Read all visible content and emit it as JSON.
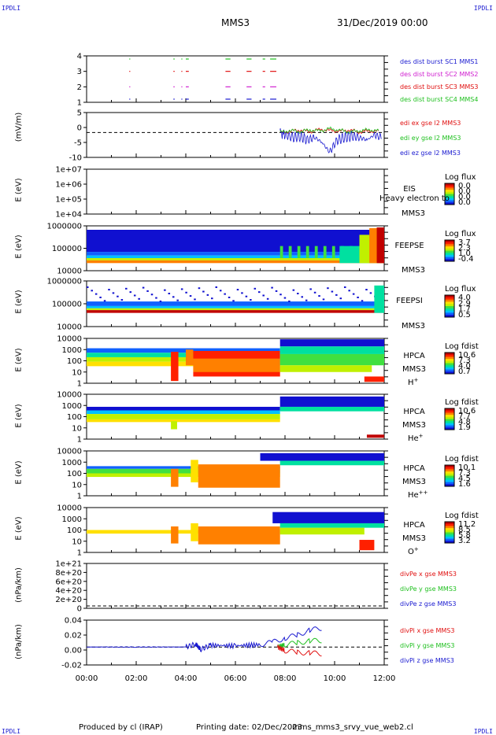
{
  "corners": {
    "tl": "IPDLI",
    "tr": "IPDLI",
    "bl": "IPDLI",
    "br": "IPDLI"
  },
  "header": {
    "spacecraft": "MMS3",
    "date": "31/Dec/2019 00:00"
  },
  "footer": {
    "produced": "Produced by cl (IRAP)",
    "printing": "Printing date: 02/Dec/2023",
    "file": "mms_mms3_srvy_vue_web2.cl"
  },
  "colors": {
    "blue": "#1a1ad0",
    "magenta": "#d020d0",
    "red": "#e01010",
    "green": "#20c020",
    "rainbow": [
      "#ffffff",
      "#1010d0",
      "#1060ff",
      "#00c0ff",
      "#00e0a0",
      "#40e040",
      "#c0f000",
      "#ffe000",
      "#ff8000",
      "#ff2000",
      "#c00000"
    ]
  },
  "chart_data": [
    {
      "type": "scatter",
      "id": "p1",
      "ylabel": "",
      "yticks": [
        "4",
        "3",
        "2",
        "1"
      ],
      "legend": [
        {
          "text": "des dist burst SC1 MMS1",
          "color": "#1a1ad0"
        },
        {
          "text": "des dist burst SC2 MMS2",
          "color": "#d020d0"
        },
        {
          "text": "des dist burst SC3 MMS3",
          "color": "#e01010"
        },
        {
          "text": "des dist burst SC4 MMS4",
          "color": "#20c020"
        }
      ],
      "series": [
        {
          "name": "des dist burst SC4 MMS4",
          "y": 4,
          "x": [
            [
              1.72,
              1.76
            ],
            [
              3.5,
              3.55
            ],
            [
              3.82,
              3.86
            ],
            [
              4.0,
              4.12
            ],
            [
              5.6,
              5.8
            ],
            [
              6.45,
              6.65
            ],
            [
              7.1,
              7.2
            ],
            [
              7.4,
              7.65
            ]
          ]
        },
        {
          "name": "des dist burst SC3 MMS3",
          "y": 3,
          "x": [
            [
              1.72,
              1.76
            ],
            [
              3.5,
              3.55
            ],
            [
              3.82,
              3.86
            ],
            [
              4.0,
              4.12
            ],
            [
              5.6,
              5.8
            ],
            [
              6.45,
              6.65
            ],
            [
              7.1,
              7.2
            ],
            [
              7.4,
              7.65
            ]
          ]
        },
        {
          "name": "des dist burst SC2 MMS2",
          "y": 2,
          "x": [
            [
              1.72,
              1.76
            ],
            [
              3.5,
              3.55
            ],
            [
              3.82,
              3.86
            ],
            [
              4.0,
              4.12
            ],
            [
              5.6,
              5.8
            ],
            [
              6.45,
              6.65
            ],
            [
              7.1,
              7.2
            ],
            [
              7.4,
              7.65
            ]
          ]
        },
        {
          "name": "des dist burst SC1 MMS1",
          "y": 1,
          "x": [
            [
              1.72,
              1.76
            ],
            [
              3.5,
              3.55
            ],
            [
              3.82,
              3.86
            ],
            [
              4.0,
              4.12
            ],
            [
              5.6,
              5.8
            ],
            [
              6.45,
              6.65
            ],
            [
              7.1,
              7.2
            ],
            [
              7.4,
              7.65
            ]
          ]
        }
      ]
    },
    {
      "type": "line",
      "id": "p2",
      "ylabel": "(mV/m)",
      "yticks": [
        "5",
        "0",
        "-5",
        "-10"
      ],
      "ylim": [
        -10,
        8
      ],
      "legend": [
        {
          "text": "edi ex gse l2 MMS3",
          "color": "#e01010"
        },
        {
          "text": "edi ey gse l2 MMS3",
          "color": "#20c020"
        },
        {
          "text": "edi ez gse l2 MMS3",
          "color": "#1a1ad0"
        }
      ],
      "series": [
        {
          "name": "edi ez gse l2 MMS3",
          "x": [
            7.8,
            8.0,
            8.3,
            8.6,
            8.9,
            9.2,
            9.5,
            9.8,
            10.1,
            10.4,
            10.7,
            11.0,
            11.3,
            11.6,
            11.9
          ],
          "y": [
            0,
            -1,
            -2,
            -1.5,
            -3,
            -2,
            -4,
            -8,
            -3,
            -2,
            -1.5,
            -2,
            -3,
            -1,
            -2
          ]
        },
        {
          "name": "edi ex gse l2 MMS3",
          "x": [
            7.8,
            8.2,
            8.6,
            9.0,
            9.4,
            9.8,
            10.2,
            10.6,
            11.0,
            11.4,
            11.8
          ],
          "y": [
            0,
            0.5,
            1,
            0.3,
            1.2,
            0.8,
            0.5,
            1,
            0.2,
            0.6,
            0.4
          ]
        },
        {
          "name": "edi ey gse l2 MMS3",
          "x": [
            7.8,
            8.2,
            8.6,
            9.0,
            9.4,
            9.8,
            10.2,
            10.6,
            11.0,
            11.4,
            11.8
          ],
          "y": [
            0,
            0.8,
            0.4,
            1,
            0.6,
            1.5,
            0.9,
            0.3,
            0.7,
            1.1,
            0.5
          ]
        }
      ]
    },
    {
      "type": "heatmap",
      "id": "p3",
      "ylabel": "E (eV)",
      "yticks": [
        "1e+07",
        "1e+06",
        "1e+05",
        "1e+04"
      ],
      "labels": [
        "EIS",
        "MMS3"
      ],
      "overlay": "Heavy electron to",
      "cbtitle": "Log flux",
      "cbvals": [
        "0.0",
        "0.0",
        "0.0",
        "0.0"
      ]
    },
    {
      "type": "heatmap",
      "id": "p4",
      "ylabel": "E (eV)",
      "yticks": [
        "1000000",
        "100000",
        "10000"
      ],
      "labels": [
        "FEEPSE",
        "MMS3"
      ],
      "cbtitle": "Log flux",
      "cbvals": [
        "3.7",
        "2.3",
        "1.0",
        "-0.4"
      ]
    },
    {
      "type": "heatmap",
      "id": "p5",
      "ylabel": "E (eV)",
      "yticks": [
        "1000000",
        "100000",
        "10000"
      ],
      "labels": [
        "FEEPSI",
        "MMS3"
      ],
      "cbtitle": "Log flux",
      "cbvals": [
        "4.0",
        "2.9",
        "1.7",
        "0.5"
      ]
    },
    {
      "type": "heatmap",
      "id": "p6",
      "ylabel": "E (eV)",
      "yticks": [
        "10000",
        "1000",
        "100",
        "10",
        "1"
      ],
      "labels": [
        "HPCA",
        "MMS3",
        "H+"
      ],
      "cbtitle": "Log fdist",
      "cbvals": [
        "10.6",
        "7.3",
        "4.0",
        "0.7"
      ]
    },
    {
      "type": "heatmap",
      "id": "p7",
      "ylabel": "E (eV)",
      "yticks": [
        "10000",
        "1000",
        "100",
        "10",
        "1"
      ],
      "labels": [
        "HPCA",
        "MMS3",
        "He+"
      ],
      "cbtitle": "Log fdist",
      "cbvals": [
        "10.6",
        "7.7",
        "4.8",
        "1.9"
      ]
    },
    {
      "type": "heatmap",
      "id": "p8",
      "ylabel": "E (eV)",
      "yticks": [
        "10000",
        "1000",
        "100",
        "10",
        "1"
      ],
      "labels": [
        "HPCA",
        "MMS3",
        "He++"
      ],
      "cbtitle": "Log fdist",
      "cbvals": [
        "10.1",
        "7.3",
        "4.5",
        "1.6"
      ]
    },
    {
      "type": "heatmap",
      "id": "p9",
      "ylabel": "E (eV)",
      "yticks": [
        "10000",
        "1000",
        "100",
        "10",
        "1"
      ],
      "labels": [
        "HPCA",
        "MMS3",
        "O+"
      ],
      "cbtitle": "Log fdist",
      "cbvals": [
        "11.2",
        "8.5",
        "5.8",
        "3.2"
      ]
    },
    {
      "type": "line",
      "id": "p10",
      "ylabel": "(nPa/km)",
      "yticks": [
        "1e+21",
        "8e+20",
        "6e+20",
        "4e+20",
        "2e+20",
        "0"
      ],
      "legend": [
        {
          "text": "divPe x gse MMS3",
          "color": "#e01010"
        },
        {
          "text": "divPe y gse MMS3",
          "color": "#20c020"
        },
        {
          "text": "divPe z gse MMS3",
          "color": "#1a1ad0"
        }
      ],
      "series": []
    },
    {
      "type": "line",
      "id": "p11",
      "ylabel": "(nPa/km)",
      "yticks": [
        "0.04",
        "0.02",
        "0.00",
        "-0.02"
      ],
      "ylim": [
        -0.03,
        0.045
      ],
      "legend": [
        {
          "text": "divPi x gse MMS3",
          "color": "#e01010"
        },
        {
          "text": "divPi y gse MMS3",
          "color": "#20c020"
        },
        {
          "text": "divPi z gse MMS3",
          "color": "#1a1ad0"
        }
      ],
      "series": [
        {
          "name": "divPi z gse MMS3",
          "x": [
            0,
            2,
            4,
            4.4,
            4.6,
            5,
            6,
            7,
            7.5,
            8,
            8.5,
            9,
            9.5
          ],
          "y": [
            0,
            0,
            0,
            0.005,
            -0.004,
            0.003,
            0.002,
            0.004,
            0.008,
            0.015,
            0.02,
            0.028,
            0.032
          ]
        },
        {
          "name": "divPi y gse MMS3",
          "x": [
            7.7,
            8,
            8.5,
            9,
            9.5
          ],
          "y": [
            0,
            0.004,
            0.007,
            0.01,
            0.011
          ]
        },
        {
          "name": "divPi x gse MMS3",
          "x": [
            7.7,
            8,
            8.5,
            9,
            9.5
          ],
          "y": [
            0,
            -0.006,
            -0.009,
            -0.01,
            -0.011
          ]
        }
      ]
    }
  ],
  "xaxis": {
    "ticks": [
      "00:00",
      "02:00",
      "04:00",
      "06:00",
      "08:00",
      "10:00",
      "12:00"
    ],
    "range": [
      0,
      12
    ]
  }
}
